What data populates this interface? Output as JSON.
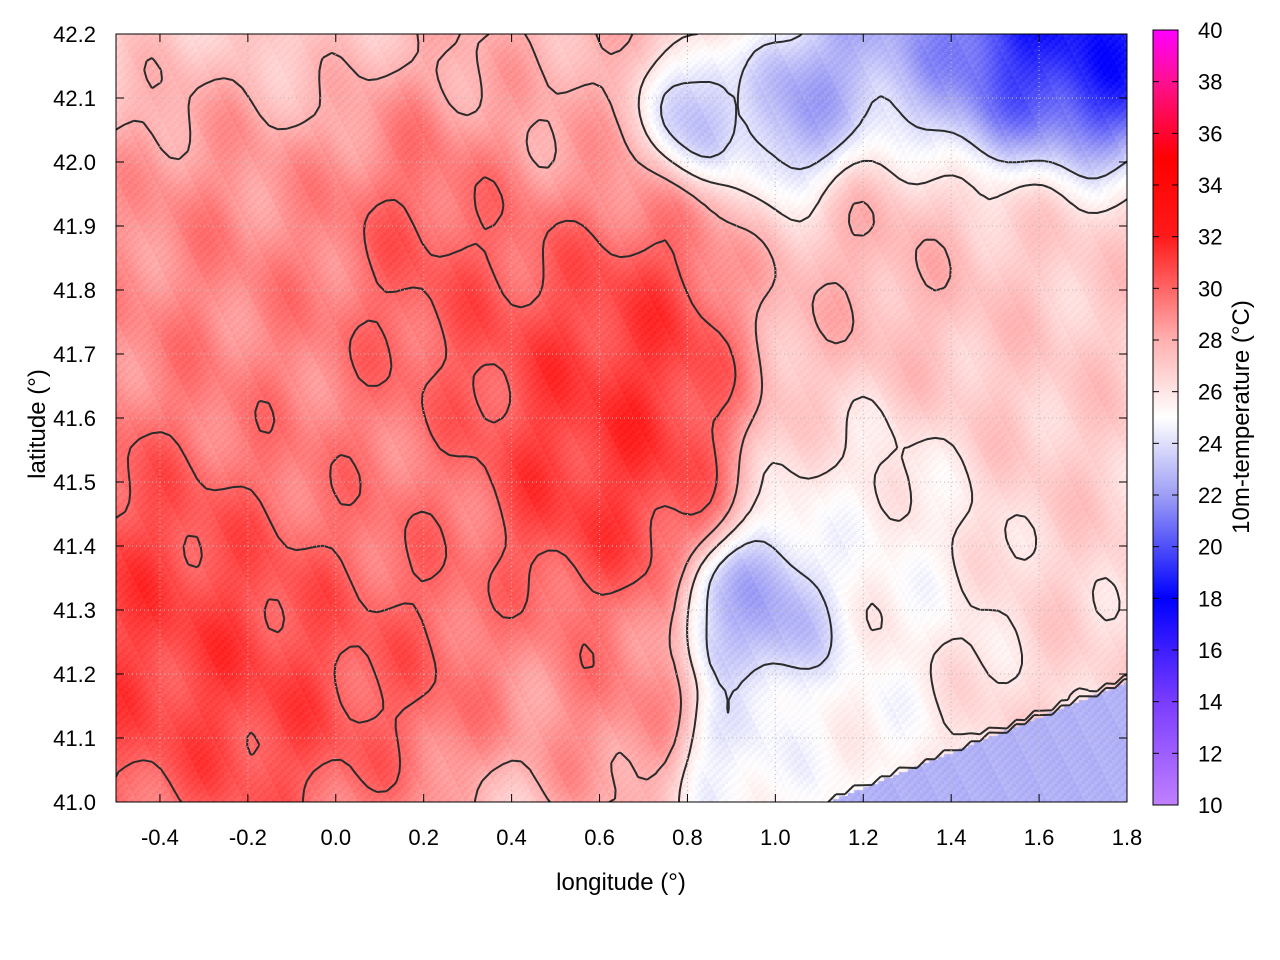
{
  "chart_data": {
    "type": "heatmap",
    "title": "",
    "xlabel": "longitude (°)",
    "ylabel": "latitude (°)",
    "colorbar_label": "10m-temperature (°C)",
    "xlim": [
      -0.5,
      1.8
    ],
    "ylim": [
      41.0,
      42.2
    ],
    "x_ticks": [
      "-0.4",
      "-0.2",
      "0.0",
      "0.2",
      "0.4",
      "0.6",
      "0.8",
      "1.0",
      "1.2",
      "1.4",
      "1.6",
      "1.8"
    ],
    "y_ticks": [
      "41.0",
      "41.1",
      "41.2",
      "41.3",
      "41.4",
      "41.5",
      "41.6",
      "41.7",
      "41.8",
      "41.9",
      "42.0",
      "42.1",
      "42.2"
    ],
    "colorbar_ticks": [
      "10",
      "12",
      "14",
      "16",
      "18",
      "20",
      "22",
      "24",
      "26",
      "28",
      "30",
      "32",
      "34",
      "36",
      "38",
      "40"
    ],
    "colorbar_range": [
      10,
      40
    ],
    "colormap": [
      {
        "value": 10,
        "color": "#c080ff"
      },
      {
        "value": 14,
        "color": "#7a3cff"
      },
      {
        "value": 18,
        "color": "#0000ff"
      },
      {
        "value": 22,
        "color": "#9e9ef5"
      },
      {
        "value": 25,
        "color": "#ffffff"
      },
      {
        "value": 28,
        "color": "#ffb0b0"
      },
      {
        "value": 32,
        "color": "#ff1a1a"
      },
      {
        "value": 35,
        "color": "#ff0000"
      },
      {
        "value": 38,
        "color": "#ff1090"
      },
      {
        "value": 40,
        "color": "#ff00ff"
      }
    ],
    "sea_temperature": 22.6,
    "grid": "dotted",
    "contours": "black isotherms",
    "field": [
      {
        "lon": -0.45,
        "lat": 41.3,
        "t": 31.5,
        "r": 0.25
      },
      {
        "lon": -0.15,
        "lat": 41.22,
        "t": 31.5,
        "r": 0.22
      },
      {
        "lon": 0.15,
        "lat": 41.25,
        "t": 30.5,
        "r": 0.18
      },
      {
        "lon": 0.25,
        "lat": 41.82,
        "t": 31.0,
        "r": 0.22
      },
      {
        "lon": 0.55,
        "lat": 41.75,
        "t": 31.0,
        "r": 0.2
      },
      {
        "lon": 0.6,
        "lat": 41.58,
        "t": 32.0,
        "r": 0.2
      },
      {
        "lon": 0.7,
        "lat": 41.72,
        "t": 31.5,
        "r": 0.15
      },
      {
        "lon": 0.55,
        "lat": 41.48,
        "t": 31.0,
        "r": 0.15
      },
      {
        "lon": -0.3,
        "lat": 41.8,
        "t": 29.5,
        "r": 0.22
      },
      {
        "lon": 0.0,
        "lat": 41.55,
        "t": 29.5,
        "r": 0.25
      },
      {
        "lon": 0.5,
        "lat": 42.1,
        "t": 28.0,
        "r": 0.25
      },
      {
        "lon": 0.6,
        "lat": 41.2,
        "t": 29.5,
        "r": 0.15
      },
      {
        "lon": 1.25,
        "lat": 41.85,
        "t": 28.0,
        "r": 0.25
      },
      {
        "lon": 1.6,
        "lat": 41.75,
        "t": 27.0,
        "r": 0.25
      },
      {
        "lon": 1.25,
        "lat": 41.45,
        "t": 25.0,
        "r": 0.18
      },
      {
        "lon": 1.0,
        "lat": 41.3,
        "t": 21.5,
        "r": 0.1
      },
      {
        "lon": 0.87,
        "lat": 41.29,
        "t": 22.5,
        "r": 0.07
      },
      {
        "lon": 0.9,
        "lat": 41.07,
        "t": 24.0,
        "r": 0.08
      },
      {
        "lon": 0.8,
        "lat": 42.08,
        "t": 21.0,
        "r": 0.08
      },
      {
        "lon": 1.05,
        "lat": 42.06,
        "t": 20.5,
        "r": 0.1
      },
      {
        "lon": 1.2,
        "lat": 42.15,
        "t": 21.0,
        "r": 0.12
      },
      {
        "lon": 1.55,
        "lat": 42.18,
        "t": 17.0,
        "r": 0.15
      },
      {
        "lon": 1.75,
        "lat": 42.15,
        "t": 17.5,
        "r": 0.12
      },
      {
        "lon": 1.4,
        "lat": 42.12,
        "t": 21.0,
        "r": 0.12
      },
      {
        "lon": 1.15,
        "lat": 41.1,
        "t": 25.0,
        "r": 0.15
      }
    ]
  }
}
